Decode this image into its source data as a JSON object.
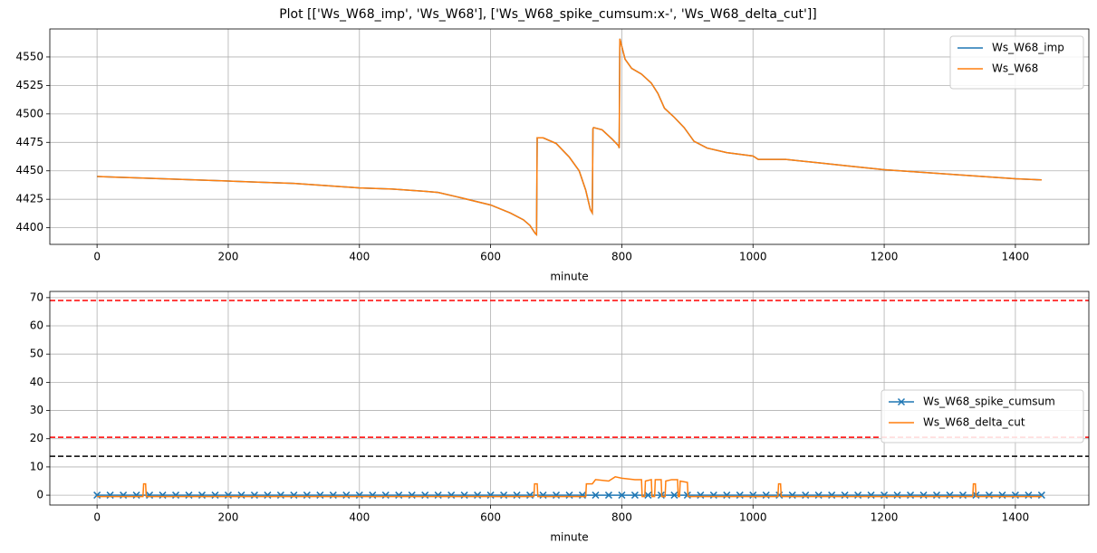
{
  "chart_data": [
    {
      "type": "line",
      "title": "Plot [['Ws_W68_imp', 'Ws_W68'], ['Ws_W68_spike_cumsum:x-', 'Ws_W68_delta_cut']]",
      "x_label": "minute",
      "xlim": [
        -72,
        1512
      ],
      "xticks": [
        0,
        200,
        400,
        600,
        800,
        1000,
        1200,
        1400
      ],
      "ylim": [
        4385.4,
        4574.6
      ],
      "yticks": [
        4400,
        4425,
        4450,
        4475,
        4500,
        4525,
        4550
      ],
      "grid": true,
      "legend": "upper right",
      "series": [
        {
          "name": "Ws_W68_imp",
          "color": "#1f77b4",
          "x": [
            0,
            50,
            100,
            150,
            200,
            250,
            300,
            350,
            400,
            450,
            500,
            520,
            550,
            600,
            630,
            650,
            660,
            668,
            670,
            671,
            680,
            700,
            720,
            735,
            745,
            752,
            755,
            756,
            757,
            770,
            785,
            795,
            796,
            797,
            805,
            815,
            830,
            845,
            855,
            865,
            880,
            895,
            910,
            930,
            960,
            1000,
            1008,
            1050,
            1100,
            1150,
            1200,
            1250,
            1300,
            1350,
            1400,
            1440
          ],
          "values": [
            4445,
            4444,
            4443,
            4442,
            4441,
            4440,
            4439,
            4437,
            4435,
            4434,
            4432,
            4431,
            4427,
            4420,
            4413,
            4407,
            4402,
            4395,
            4394,
            4479,
            4479,
            4474,
            4462,
            4450,
            4433,
            4416,
            4413,
            4487,
            4488,
            4486,
            4478,
            4472,
            4470,
            4566,
            4548,
            4540,
            4535,
            4527,
            4518,
            4505,
            4497,
            4488,
            4476,
            4470,
            4466,
            4463,
            4460,
            4460,
            4457,
            4454,
            4451,
            4449,
            4447,
            4445,
            4443,
            4442
          ]
        },
        {
          "name": "Ws_W68",
          "color": "#ff7f0e",
          "x": [
            0,
            50,
            100,
            150,
            200,
            250,
            300,
            350,
            400,
            450,
            500,
            520,
            550,
            600,
            630,
            650,
            660,
            668,
            670,
            671,
            680,
            700,
            720,
            735,
            745,
            752,
            755,
            756,
            757,
            770,
            785,
            795,
            796,
            797,
            805,
            815,
            830,
            845,
            855,
            865,
            880,
            895,
            910,
            930,
            960,
            1000,
            1008,
            1050,
            1100,
            1150,
            1200,
            1250,
            1300,
            1350,
            1400,
            1440
          ],
          "values": [
            4445,
            4444,
            4443,
            4442,
            4441,
            4440,
            4439,
            4437,
            4435,
            4434,
            4432,
            4431,
            4427,
            4420,
            4413,
            4407,
            4402,
            4395,
            4394,
            4479,
            4479,
            4474,
            4462,
            4450,
            4433,
            4416,
            4413,
            4487,
            4488,
            4486,
            4478,
            4472,
            4470,
            4566,
            4548,
            4540,
            4535,
            4527,
            4518,
            4505,
            4497,
            4488,
            4476,
            4470,
            4466,
            4463,
            4460,
            4460,
            4457,
            4454,
            4451,
            4449,
            4447,
            4445,
            4443,
            4442
          ]
        }
      ]
    },
    {
      "type": "line",
      "x_label": "minute",
      "xlim": [
        -72,
        1512
      ],
      "xticks": [
        0,
        200,
        400,
        600,
        800,
        1000,
        1200,
        1400
      ],
      "ylim": [
        -3.5,
        72.2
      ],
      "yticks": [
        0,
        10,
        20,
        30,
        40,
        50,
        60,
        70
      ],
      "grid": true,
      "legend": "center right",
      "hlines": [
        {
          "value": 69,
          "color": "#ff0000"
        },
        {
          "value": 20.5,
          "color": "#ff0000"
        },
        {
          "value": 13.8,
          "color": "#000000"
        }
      ],
      "series": [
        {
          "name": "Ws_W68_spike_cumsum",
          "color": "#1f77b4",
          "marker": "x",
          "x": [
            0,
            20,
            40,
            60,
            80,
            100,
            120,
            140,
            160,
            180,
            200,
            220,
            240,
            260,
            280,
            300,
            320,
            340,
            360,
            380,
            400,
            420,
            440,
            460,
            480,
            500,
            520,
            540,
            560,
            580,
            600,
            620,
            640,
            660,
            680,
            700,
            720,
            740,
            760,
            780,
            800,
            820,
            840,
            860,
            880,
            900,
            920,
            940,
            960,
            980,
            1000,
            1020,
            1040,
            1060,
            1080,
            1100,
            1120,
            1140,
            1160,
            1180,
            1200,
            1220,
            1240,
            1260,
            1280,
            1300,
            1320,
            1340,
            1360,
            1380,
            1400,
            1420,
            1440
          ],
          "values": [
            0,
            0,
            0,
            0,
            0,
            0,
            0,
            0,
            0,
            0,
            0,
            0,
            0,
            0,
            0,
            0,
            0,
            0,
            0,
            0,
            0,
            0,
            0,
            0,
            0,
            0,
            0,
            0,
            0,
            0,
            0,
            0,
            0,
            0,
            0,
            0,
            0,
            0,
            0,
            0,
            0,
            0,
            0,
            0,
            0,
            0,
            0,
            0,
            0,
            0,
            0,
            0,
            0,
            0,
            0,
            0,
            0,
            0,
            0,
            0,
            0,
            0,
            0,
            0,
            0,
            0,
            0,
            0,
            0,
            0,
            0,
            0,
            0
          ]
        },
        {
          "name": "Ws_W68_delta_cut",
          "color": "#ff7f0e",
          "x": [
            0,
            70,
            71,
            74,
            75,
            666,
            667,
            671,
            672,
            745,
            746,
            755,
            760,
            780,
            790,
            800,
            820,
            830,
            831,
            835,
            836,
            845,
            846,
            850,
            851,
            860,
            861,
            866,
            867,
            876,
            885,
            886,
            888,
            889,
            900,
            901,
            1038,
            1039,
            1042,
            1043,
            1335,
            1336,
            1339,
            1340,
            1440
          ],
          "values": [
            -0.5,
            -0.5,
            4,
            4,
            -0.5,
            -0.5,
            4,
            4,
            -0.5,
            -0.5,
            4,
            4,
            5.5,
            5,
            6.5,
            6,
            5.5,
            5.5,
            -0.5,
            -0.5,
            5,
            5.5,
            -0.5,
            -0.5,
            5.5,
            5.5,
            -0.5,
            -0.5,
            5,
            5.5,
            5.5,
            -0.5,
            -0.5,
            5,
            4.5,
            -0.5,
            -0.5,
            4,
            4,
            -0.5,
            -0.5,
            4,
            4,
            -0.5,
            -0.5
          ]
        }
      ]
    }
  ]
}
